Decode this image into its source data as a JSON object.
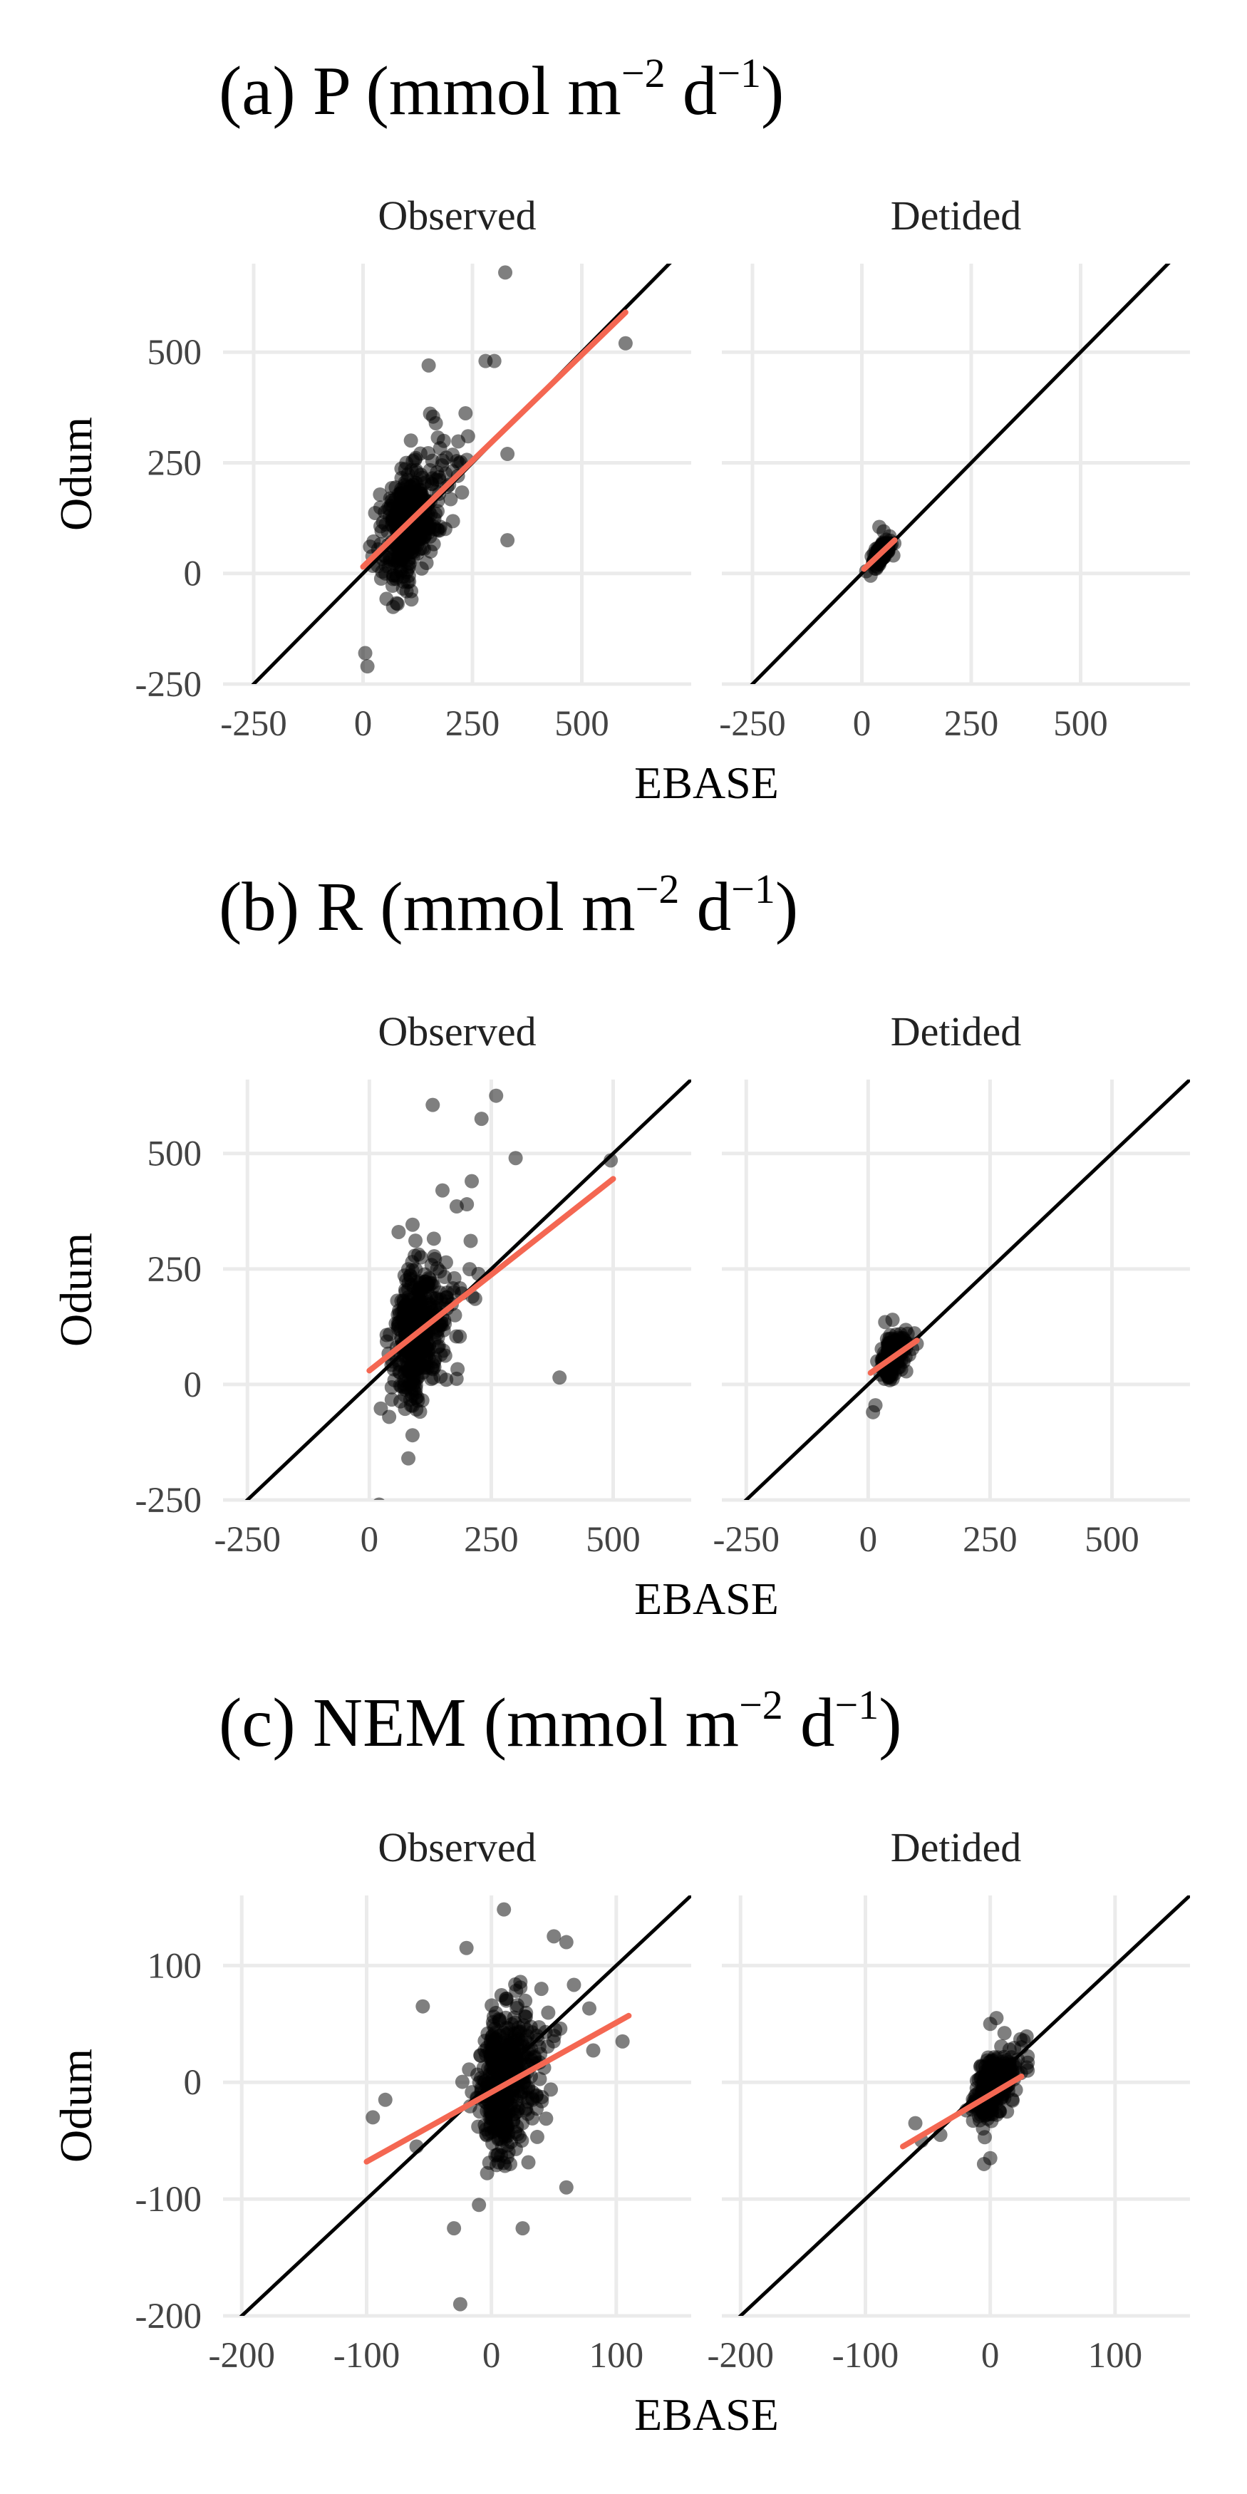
{
  "figure": {
    "colors": {
      "points": "#000000",
      "identity_line": "#000000",
      "fit_line": "#f46752",
      "grid": "#ebebeb",
      "background": "#ffffff"
    }
  },
  "chart_data": [
    {
      "id": "a",
      "type": "scatter",
      "title": "(a) P (mmol m",
      "title_sup1": "−2",
      "title_mid": " d",
      "title_sup2": "−1",
      "title_end": ")",
      "xlabel": "EBASE",
      "ylabel": "Odum",
      "xlim": [
        -320,
        750
      ],
      "ylim": [
        -250,
        700
      ],
      "xticks": [
        -250,
        0,
        250,
        500
      ],
      "xtick_labels": [
        "-250",
        "0",
        "250",
        "500"
      ],
      "yticks": [
        -250,
        0,
        250,
        500
      ],
      "ytick_labels": [
        "-250",
        "0",
        "250",
        "500"
      ],
      "grid": true,
      "identity_line": true,
      "facets": [
        {
          "label": "Observed",
          "fit": {
            "x": [
              0,
              600
            ],
            "y": [
              15,
              590
            ]
          },
          "points": {
            "n": 420,
            "x_mean": 75,
            "x_sd": 55,
            "x_min": -5,
            "x_max": 350,
            "slope": 0.95,
            "intercept": 10,
            "noise_sd": 62,
            "seed": 11,
            "extra": [
              [
                325,
                680
              ],
              [
                600,
                520
              ],
              [
                280,
                480
              ],
              [
                300,
                480
              ],
              [
                150,
                470
              ],
              [
                330,
                270
              ],
              [
                240,
                310
              ],
              [
                110,
                -40
              ],
              [
                10,
                -210
              ],
              [
                5,
                -180
              ],
              [
                330,
                75
              ]
            ]
          }
        },
        {
          "label": "Detided",
          "fit": {
            "x": [
              5,
              75
            ],
            "y": [
              10,
              75
            ]
          },
          "points": {
            "n": 220,
            "x_mean": 35,
            "x_sd": 15,
            "x_min": 0,
            "x_max": 80,
            "slope": 0.95,
            "intercept": 3,
            "noise_sd": 10,
            "seed": 12,
            "extra": [
              [
                40,
                105
              ],
              [
                50,
                95
              ],
              [
                10,
                5
              ],
              [
                20,
                -5
              ]
            ]
          }
        }
      ]
    },
    {
      "id": "b",
      "type": "scatter",
      "title": "(b) R (mmol m",
      "title_sup1": "−2",
      "title_mid": " d",
      "title_sup2": "−1",
      "title_end": ")",
      "xlabel": "EBASE",
      "ylabel": "Odum",
      "xlim": [
        -300,
        660
      ],
      "ylim": [
        -250,
        660
      ],
      "xticks": [
        -250,
        0,
        250,
        500
      ],
      "xtick_labels": [
        "-250",
        "0",
        "250",
        "500"
      ],
      "yticks": [
        -250,
        0,
        250,
        500
      ],
      "ytick_labels": [
        "-250",
        "0",
        "250",
        "500"
      ],
      "grid": true,
      "identity_line": true,
      "facets": [
        {
          "label": "Observed",
          "fit": {
            "x": [
              0,
              500
            ],
            "y": [
              30,
              445
            ]
          },
          "points": {
            "n": 420,
            "x_mean": 70,
            "x_sd": 50,
            "x_min": -5,
            "x_max": 330,
            "slope": 0.83,
            "intercept": 30,
            "noise_sd": 70,
            "seed": 21,
            "extra": [
              [
                130,
                605
              ],
              [
                260,
                625
              ],
              [
                230,
                575
              ],
              [
                495,
                485
              ],
              [
                300,
                490
              ],
              [
                390,
                15
              ],
              [
                20,
                -260
              ],
              [
                80,
                -160
              ],
              [
                150,
                420
              ],
              [
                210,
                440
              ],
              [
                200,
                390
              ],
              [
                60,
                330
              ]
            ]
          }
        },
        {
          "label": "Detided",
          "fit": {
            "x": [
              5,
              100
            ],
            "y": [
              25,
              95
            ]
          },
          "points": {
            "n": 220,
            "x_mean": 40,
            "x_sd": 20,
            "x_min": 0,
            "x_max": 100,
            "slope": 0.8,
            "intercept": 20,
            "noise_sd": 20,
            "seed": 22,
            "extra": [
              [
                10,
                -60
              ],
              [
                15,
                -45
              ],
              [
                50,
                140
              ],
              [
                35,
                135
              ]
            ]
          }
        }
      ]
    },
    {
      "id": "c",
      "type": "scatter",
      "title": "(c) NEM (mmol m",
      "title_sup1": "−2",
      "title_mid": " d",
      "title_sup2": "−1",
      "title_end": ")",
      "xlabel": "EBASE",
      "ylabel": "Odum",
      "xlim": [
        -215,
        160
      ],
      "ylim": [
        -200,
        160
      ],
      "xticks": [
        -200,
        -100,
        0,
        100
      ],
      "xtick_labels": [
        "-200",
        "-100",
        "0",
        "100"
      ],
      "yticks": [
        -200,
        -100,
        0,
        100
      ],
      "ytick_labels": [
        "-200",
        "-100",
        "0",
        "100"
      ],
      "grid": true,
      "identity_line": true,
      "facets": [
        {
          "label": "Observed",
          "fit": {
            "x": [
              -100,
              110
            ],
            "y": [
              -68,
              57
            ]
          },
          "points": {
            "n": 480,
            "x_mean": 0,
            "x_sd": 20,
            "x_min": -100,
            "x_max": 110,
            "slope": 0.6,
            "intercept": -8,
            "noise_sd": 30,
            "seed": 31,
            "extra": [
              [
                10,
                148
              ],
              [
                -20,
                115
              ],
              [
                50,
                125
              ],
              [
                60,
                120
              ],
              [
                -85,
                -15
              ],
              [
                -95,
                -30
              ],
              [
                -55,
                65
              ],
              [
                -30,
                -125
              ],
              [
                -25,
                -190
              ],
              [
                -10,
                -105
              ],
              [
                25,
                -125
              ],
              [
                60,
                -90
              ],
              [
                105,
                35
              ],
              [
                -60,
                -55
              ],
              [
                40,
                80
              ]
            ]
          }
        },
        {
          "label": "Detided",
          "fit": {
            "x": [
              -70,
              25
            ],
            "y": [
              -55,
              5
            ]
          },
          "points": {
            "n": 280,
            "x_mean": -5,
            "x_sd": 14,
            "x_min": -70,
            "x_max": 30,
            "slope": 0.65,
            "intercept": -5,
            "noise_sd": 12,
            "seed": 32,
            "extra": [
              [
                0,
                50
              ],
              [
                5,
                55
              ],
              [
                -5,
                -70
              ],
              [
                0,
                -65
              ],
              [
                25,
                30
              ],
              [
                -60,
                -35
              ],
              [
                -55,
                -50
              ],
              [
                -40,
                -45
              ]
            ]
          }
        }
      ]
    }
  ]
}
